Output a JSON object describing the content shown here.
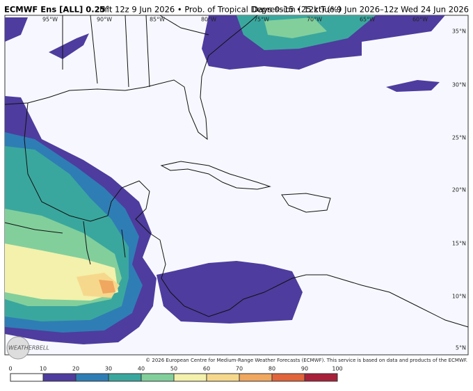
{
  "header": {
    "model": "ECMWF Ens [ALL] 0.25°",
    "description": "Init 12z 9 Jun 2026 • Prob. of Tropical Depression (25 kt) (%)",
    "period": "Days 0–15 • 12z Tue 9 Jun 2026–12z Wed 24 Jun 2026"
  },
  "map": {
    "longitude_labels": [
      "95°W",
      "90°W",
      "85°W",
      "80°W",
      "75°W",
      "70°W",
      "65°W",
      "60°W"
    ],
    "latitude_labels": [
      "35°N",
      "30°N",
      "25°N",
      "20°N",
      "15°N",
      "10°N",
      "5°N"
    ],
    "logo": "WEATHERBELL",
    "copyright": "© 2026 European Centre for Medium-Range Weather Forecasts (ECMWF). This service is based on data and products of the ECMWF."
  },
  "colorbar": {
    "ticks": [
      0,
      10,
      20,
      30,
      40,
      50,
      60,
      70,
      80,
      90,
      100
    ],
    "colors": [
      "#ffffff",
      "#4e3c9e",
      "#2f7db5",
      "#3aa79e",
      "#82cf9c",
      "#f3f1ab",
      "#f6d88c",
      "#f0a760",
      "#e1643b",
      "#a8203a"
    ]
  }
}
